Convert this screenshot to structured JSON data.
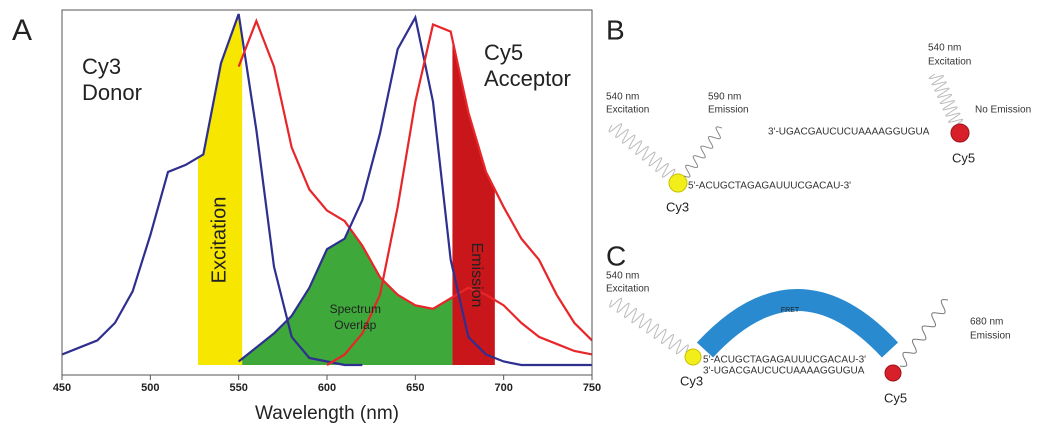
{
  "chart_data": {
    "type": "line",
    "panel_label": "A",
    "x": [
      450,
      460,
      470,
      480,
      490,
      500,
      510,
      520,
      530,
      540,
      550,
      560,
      570,
      580,
      590,
      600,
      610,
      620,
      630,
      640,
      650,
      660,
      670,
      680,
      690,
      700,
      710,
      720,
      730,
      740,
      750
    ],
    "series": [
      {
        "color": "#2e2f8f",
        "values": [
          0.03,
          0.05,
          0.07,
          0.12,
          0.21,
          0.37,
          0.55,
          0.57,
          0.6,
          0.86,
          1.0,
          0.67,
          0.28,
          0.08,
          0.02,
          0.01,
          0,
          0,
          null,
          null,
          null,
          null,
          null,
          null,
          null,
          null,
          null,
          null,
          null,
          null,
          null
        ]
      },
      {
        "color": "#e8262a",
        "values": [
          null,
          null,
          null,
          null,
          null,
          null,
          null,
          null,
          null,
          null,
          0.85,
          0.98,
          0.85,
          0.62,
          0.5,
          0.44,
          0.41,
          0.34,
          0.25,
          0.2,
          0.17,
          0.16,
          0.19,
          0.22,
          0.2,
          0.17,
          0.12,
          0.08,
          0.06,
          0.04,
          0.03
        ]
      },
      {
        "color": "#2e2f8f",
        "values": [
          null,
          null,
          null,
          null,
          null,
          null,
          null,
          null,
          null,
          null,
          0.01,
          0.05,
          0.09,
          0.14,
          0.22,
          0.33,
          0.36,
          0.47,
          0.66,
          0.9,
          0.99,
          0.75,
          0.3,
          0.08,
          0.03,
          0.01,
          0,
          0,
          0,
          0,
          0
        ]
      },
      {
        "color": "#e8262a",
        "values": [
          null,
          null,
          null,
          null,
          null,
          null,
          null,
          null,
          null,
          null,
          null,
          null,
          null,
          null,
          null,
          0,
          0.03,
          0.09,
          0.2,
          0.45,
          0.75,
          0.97,
          0.95,
          0.72,
          0.55,
          0.45,
          0.36,
          0.3,
          0.2,
          0.12,
          0.07
        ]
      }
    ],
    "regions": [
      {
        "label": [
          "Excitation"
        ],
        "range": [
          527,
          552
        ],
        "color": "#f7e600"
      },
      {
        "label": [
          "Spectrum",
          "Overlap"
        ],
        "range": [
          552,
          671
        ],
        "color": "#3ea83a"
      },
      {
        "label": [
          "Emission"
        ],
        "range": [
          671,
          695
        ],
        "color": "#c8161b"
      }
    ],
    "donor_label": [
      "Cy3",
      "Donor"
    ],
    "acceptor_label": [
      "Cy5",
      "Acceptor"
    ],
    "xlabel": "Wavelength (nm)",
    "xlim": [
      450,
      750
    ],
    "xticks": [
      450,
      500,
      550,
      600,
      650,
      700,
      750
    ],
    "ylim": [
      0,
      1
    ]
  },
  "panel_b": {
    "label": "B",
    "excitation_left": [
      "540 nm",
      "Excitation"
    ],
    "emission_left": [
      "590 nm",
      "Emission"
    ],
    "strand_top": "5'-ACUGCTAGAGAUUUCGACAU-3'",
    "donor": "Cy3",
    "excitation_right": [
      "540 nm",
      "Excitation"
    ],
    "no_emission": "No Emission",
    "strand_bottom": "3'-UGACGAUCUCUAAAAGGUGUA",
    "acceptor": "Cy5"
  },
  "panel_c": {
    "label": "C",
    "excitation": [
      "540 nm",
      "Excitation"
    ],
    "fret": "FRET",
    "strand_top": "5'-ACUGCTAGAGAUUUCGACAU-3'",
    "strand_bottom": "3'-UGACGAUCUCUAAAAGGUGUA",
    "donor": "Cy3",
    "acceptor": "Cy5",
    "emission": [
      "680 nm",
      "Emission"
    ]
  }
}
